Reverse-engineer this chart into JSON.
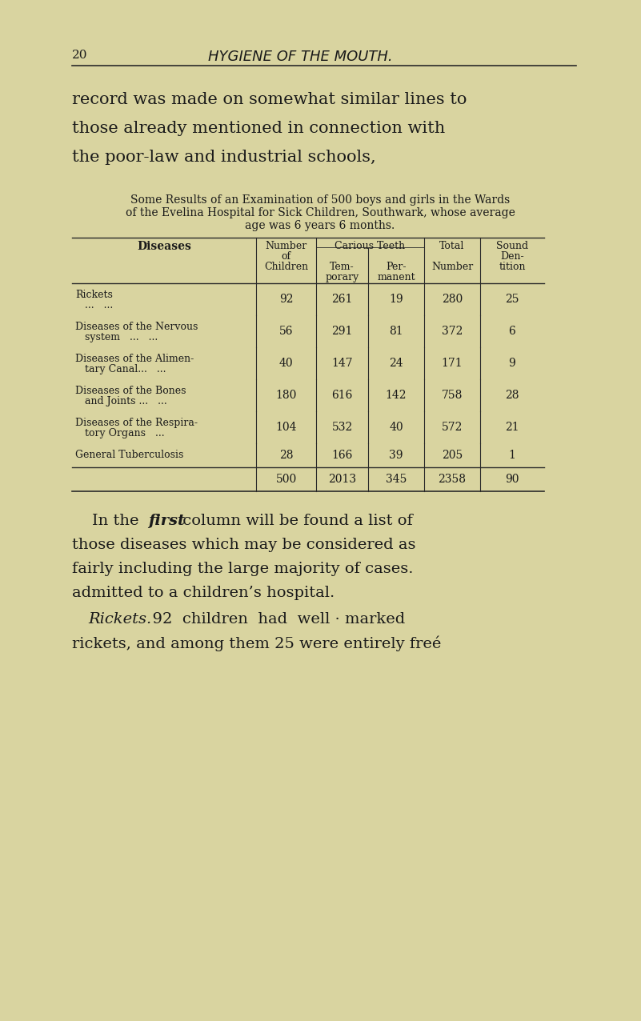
{
  "bg_color": "#d9d4a0",
  "page_number": "20",
  "header_title": "HYGIENE OF THE MOUTH.",
  "intro_text": "record was made on somewhat similar lines to\nthose already mentioned in connection with\nthe poor-law and industrial schools,",
  "table_caption_line1": "Some Results of an Examination of 500 boys and girls in the Wards",
  "table_caption_line2": "of the Evelina Hospital for Sick Children, Southwark, whose average",
  "table_caption_line3": "age was 6 years 6 months.",
  "col_headers": [
    [
      "Diseases",
      "",
      ""
    ],
    [
      "Number\nof\nChildren",
      "",
      ""
    ],
    [
      "Carious Teeth",
      "Tem-\nporary",
      "Per-\nmanent"
    ],
    [
      "Total",
      "Number",
      ""
    ],
    [
      "Sound\nDen-\ntition",
      "",
      ""
    ]
  ],
  "rows": [
    [
      "Rickets\n...   ...",
      "92",
      "261",
      "19",
      "280",
      "25"
    ],
    [
      "Diseases of the Nervous\nsystem   ...   ...",
      "56",
      "291",
      "81",
      "372",
      "6"
    ],
    [
      "Diseases of the Alimen-\ntary Canal...   ...",
      "40",
      "147",
      "24",
      "171",
      "9"
    ],
    [
      "Diseases of the Bones\nand Joints ...   ...",
      "180",
      "616",
      "142",
      "758",
      "28"
    ],
    [
      "Diseases of the Respira-\ntory Organs   ...",
      "104",
      "532",
      "40",
      "572",
      "21"
    ],
    [
      "General Tuberculosis",
      "28",
      "166",
      "39",
      "205",
      "1"
    ]
  ],
  "totals_row": [
    "",
    "500",
    "2013",
    "345",
    "2358",
    "90"
  ],
  "footer_text_line1": "In the ƒirst column will be found a list of",
  "footer_text_line2": "those diseases which may be considered as",
  "footer_text_line3": "fairly including the large majority of cases.",
  "footer_text_line4": "admitted to a children’s hospital.",
  "footer_text_line5": "Rickets.   92  children  had  well · marked",
  "footer_text_line6": "rickets, and among them 25 were entirely freé",
  "text_color": "#1a1a1a",
  "line_color": "#2a2a2a"
}
